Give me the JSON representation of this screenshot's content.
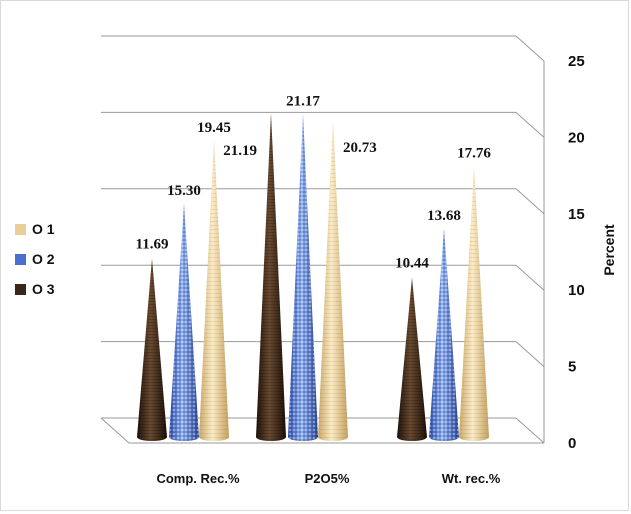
{
  "chart_data": {
    "type": "bar",
    "style": "3d-cone",
    "categories": [
      "Comp. Rec.%",
      "P2O5%",
      "Wt. rec.%"
    ],
    "series": [
      {
        "name": "O 3",
        "color": "#3a2618",
        "values": [
          11.69,
          21.19,
          10.44
        ]
      },
      {
        "name": "O 2",
        "color": "#4a6fd0",
        "values": [
          15.3,
          21.17,
          13.68
        ]
      },
      {
        "name": "O 1",
        "color": "#e8cf98",
        "values": [
          19.45,
          20.73,
          17.76
        ]
      }
    ],
    "data_labels": [
      [
        "11.69",
        "21.19",
        "10.44"
      ],
      [
        "15.30",
        "21.17",
        "13.68"
      ],
      [
        "19.45",
        "20.73",
        "17.76"
      ]
    ],
    "legend": [
      "O 1",
      "O 2",
      "O 3"
    ],
    "legend_position": "left",
    "ylabel": "Percent",
    "y_axis_side": "right",
    "ylim": [
      0,
      25
    ],
    "yticks": [
      "0",
      "5",
      "10",
      "15",
      "20",
      "25"
    ],
    "grid": true
  }
}
